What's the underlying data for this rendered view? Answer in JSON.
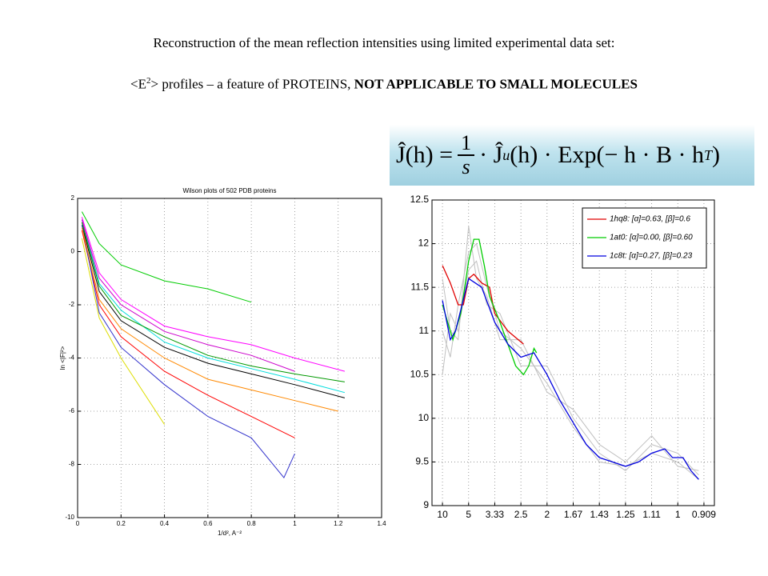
{
  "slide": {
    "title": "Reconstruction of the mean reflection intensities using limited experimental data set:",
    "subtitle": {
      "pre": "<E",
      "sup": "2",
      "mid": "> profiles – a feature of PROTEINS, ",
      "bold": "NOT APPLICABLE TO SMALL MOLECULES"
    },
    "equation": {
      "lhs": "Ĵ(h) =",
      "numerator": "1",
      "denominator": "s",
      "mid": "· Ĵ",
      "sub": "u",
      "rhs": "(h) · Exp(− h · B · h",
      "sup": "T",
      "close": ")"
    }
  },
  "chart_data": [
    {
      "type": "line",
      "title": "Wilson plots of 502 PDB proteins",
      "xlabel": "1/d², A⁻²",
      "ylabel": "ln <|F|²>",
      "xlim": [
        0,
        1.4
      ],
      "xticks": [
        0,
        0.2,
        0.4,
        0.6,
        0.8,
        1,
        1.2,
        1.4
      ],
      "ylim": [
        -10,
        2
      ],
      "yticks": [
        -10,
        -8,
        -6,
        -4,
        -2,
        0,
        2
      ],
      "grid": true,
      "series": [
        {
          "color": "#00cc00",
          "x": [
            0.02,
            0.1,
            0.2,
            0.4,
            0.6,
            0.8
          ],
          "values": [
            1.5,
            0.3,
            -0.5,
            -1.1,
            -1.4,
            -1.9
          ]
        },
        {
          "color": "#ff00ff",
          "x": [
            0.02,
            0.1,
            0.2,
            0.4,
            0.6,
            0.8,
            1.0,
            1.23
          ],
          "values": [
            1.3,
            -0.8,
            -1.8,
            -2.8,
            -3.2,
            -3.5,
            -4.0,
            -4.5
          ]
        },
        {
          "color": "#000000",
          "x": [
            0.02,
            0.1,
            0.2,
            0.4,
            0.6,
            0.8,
            1.0,
            1.23
          ],
          "values": [
            1.0,
            -1.5,
            -2.6,
            -3.6,
            -4.2,
            -4.6,
            -5.0,
            -5.5
          ]
        },
        {
          "color": "#ff0000",
          "x": [
            0.02,
            0.1,
            0.2,
            0.4,
            0.6,
            0.8,
            1.0
          ],
          "values": [
            0.8,
            -2.0,
            -3.2,
            -4.5,
            -5.4,
            -6.2,
            -7.0
          ]
        },
        {
          "color": "#3333cc",
          "x": [
            0.02,
            0.1,
            0.2,
            0.4,
            0.6,
            0.8,
            0.95,
            1.0
          ],
          "values": [
            1.0,
            -2.3,
            -3.6,
            -5.0,
            -6.2,
            -7.0,
            -8.5,
            -7.6
          ]
        },
        {
          "color": "#dddd00",
          "x": [
            0.02,
            0.1,
            0.2,
            0.4
          ],
          "values": [
            0.5,
            -2.5,
            -4.0,
            -6.5
          ]
        },
        {
          "color": "#00dddd",
          "x": [
            0.02,
            0.1,
            0.2,
            0.4,
            0.6,
            0.8,
            1.0,
            1.23
          ],
          "values": [
            1.2,
            -1.2,
            -2.2,
            -3.4,
            -4.0,
            -4.4,
            -4.8,
            -5.3
          ]
        },
        {
          "color": "#cc00cc",
          "x": [
            0.02,
            0.1,
            0.2,
            0.4,
            0.6,
            0.8,
            1.0
          ],
          "values": [
            1.2,
            -1.0,
            -2.0,
            -3.0,
            -3.5,
            -3.9,
            -4.5
          ]
        },
        {
          "color": "#009900",
          "x": [
            0.02,
            0.1,
            0.2,
            0.4,
            0.6,
            0.8,
            1.0,
            1.23
          ],
          "values": [
            1.1,
            -1.3,
            -2.4,
            -3.2,
            -3.9,
            -4.3,
            -4.6,
            -4.9
          ]
        },
        {
          "color": "#ff8800",
          "x": [
            0.02,
            0.1,
            0.2,
            0.4,
            0.6,
            0.8,
            1.0,
            1.2
          ],
          "values": [
            0.9,
            -1.8,
            -2.9,
            -4.0,
            -4.8,
            -5.2,
            -5.6,
            -6.0
          ]
        }
      ]
    },
    {
      "type": "line",
      "legend": "upper right",
      "xlim": [
        0.06,
        1.14
      ],
      "xticks": [
        {
          "value": 0.1,
          "label": "10"
        },
        {
          "value": 0.2,
          "label": "5"
        },
        {
          "value": 0.3,
          "label": "3.33"
        },
        {
          "value": 0.4,
          "label": "2.5"
        },
        {
          "value": 0.5,
          "label": "2"
        },
        {
          "value": 0.6,
          "label": "1.67"
        },
        {
          "value": 0.7,
          "label": "1.43"
        },
        {
          "value": 0.8,
          "label": "1.25"
        },
        {
          "value": 0.9,
          "label": "1.11"
        },
        {
          "value": 1.0,
          "label": "1"
        },
        {
          "value": 1.1,
          "label": "0.909"
        }
      ],
      "ylim": [
        9,
        12.5
      ],
      "yticks": [
        9,
        9.5,
        10,
        10.5,
        11,
        11.5,
        12,
        12.5
      ],
      "grid": true,
      "background_series": [
        {
          "color": "#c0c0c0",
          "x": [
            0.1,
            0.13,
            0.16,
            0.2,
            0.23,
            0.27,
            0.32,
            0.4,
            0.5,
            0.6,
            0.7,
            0.8,
            0.9,
            1.0,
            1.08
          ],
          "values": [
            11.0,
            10.7,
            11.3,
            11.9,
            12.0,
            11.5,
            11.0,
            10.8,
            10.4,
            9.9,
            9.5,
            9.45,
            9.6,
            9.5,
            9.3
          ]
        },
        {
          "color": "#c0c0c0",
          "x": [
            0.1,
            0.13,
            0.16,
            0.2,
            0.23,
            0.27,
            0.32,
            0.4,
            0.5,
            0.6,
            0.7,
            0.8,
            0.9,
            1.0,
            1.08
          ],
          "values": [
            10.5,
            11.2,
            11.0,
            11.7,
            11.8,
            11.3,
            11.2,
            10.6,
            10.6,
            10.0,
            9.6,
            9.4,
            9.7,
            9.6,
            9.35
          ]
        },
        {
          "color": "#c0c0c0",
          "x": [
            0.1,
            0.13,
            0.16,
            0.2,
            0.23,
            0.27,
            0.32,
            0.4,
            0.5,
            0.6,
            0.7,
            0.8,
            0.9,
            1.0,
            1.08
          ],
          "values": [
            11.6,
            11.0,
            10.9,
            12.2,
            11.6,
            11.4,
            10.9,
            10.9,
            10.3,
            10.1,
            9.7,
            9.5,
            9.8,
            9.45,
            9.4
          ]
        }
      ],
      "series": [
        {
          "name": "1hq8: [α]=0.63, [β]=0.6",
          "color": "#e00000",
          "x": [
            0.1,
            0.13,
            0.16,
            0.18,
            0.2,
            0.22,
            0.25,
            0.28,
            0.3,
            0.35,
            0.41
          ],
          "values": [
            11.75,
            11.55,
            11.3,
            11.3,
            11.6,
            11.65,
            11.55,
            11.5,
            11.2,
            11.0,
            10.85
          ]
        },
        {
          "name": "1at0: [α]=0.00, [β]=0.60",
          "color": "#00cc00",
          "x": [
            0.1,
            0.12,
            0.14,
            0.17,
            0.2,
            0.22,
            0.24,
            0.26,
            0.28,
            0.32,
            0.35,
            0.38,
            0.41,
            0.43,
            0.45,
            0.46
          ],
          "values": [
            11.3,
            11.1,
            10.9,
            11.2,
            11.8,
            12.05,
            12.05,
            11.75,
            11.4,
            11.1,
            10.85,
            10.6,
            10.5,
            10.6,
            10.8,
            10.75
          ]
        },
        {
          "name": "1c8t: [α]=0.27, [β]=0.23",
          "color": "#0000e0",
          "x": [
            0.1,
            0.13,
            0.15,
            0.2,
            0.25,
            0.3,
            0.35,
            0.4,
            0.45,
            0.5,
            0.55,
            0.6,
            0.65,
            0.7,
            0.75,
            0.8,
            0.85,
            0.9,
            0.95,
            0.98,
            1.02,
            1.05,
            1.08
          ],
          "values": [
            11.35,
            10.9,
            11.0,
            11.6,
            11.5,
            11.1,
            10.85,
            10.7,
            10.75,
            10.5,
            10.2,
            9.95,
            9.7,
            9.55,
            9.5,
            9.45,
            9.5,
            9.6,
            9.65,
            9.55,
            9.55,
            9.4,
            9.3
          ]
        }
      ]
    }
  ]
}
